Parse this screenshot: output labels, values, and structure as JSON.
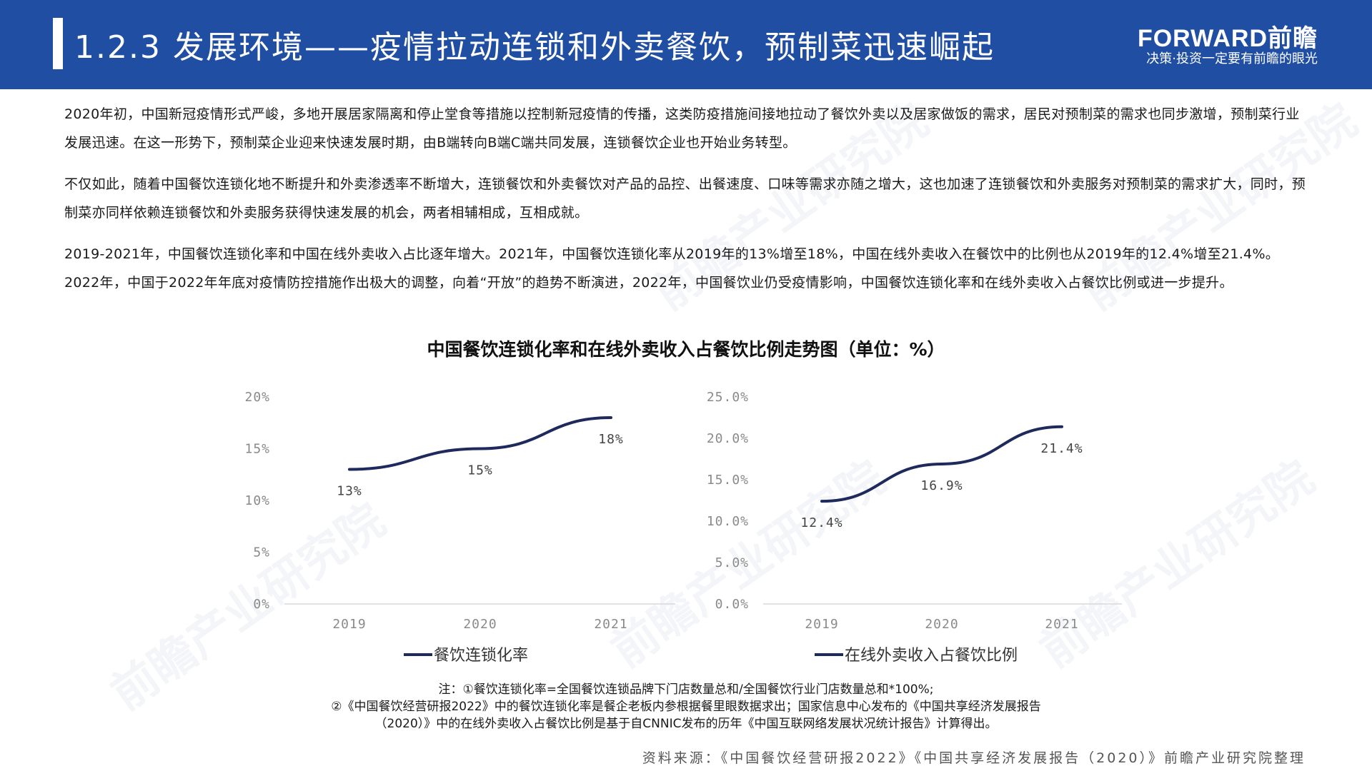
{
  "header": {
    "title": "1.2.3 发展环境——疫情拉动连锁和外卖餐饮，预制菜迅速崛起",
    "logo_text": "FORWARD前瞻",
    "logo_slogan": "决策·投资一定要有前瞻的眼光"
  },
  "paragraphs": [
    "2020年初，中国新冠疫情形式严峻，多地开展居家隔离和停止堂食等措施以控制新冠疫情的传播，这类防疫措施间接地拉动了餐饮外卖以及居家做饭的需求，居民对预制菜的需求也同步激增，预制菜行业发展迅速。在这一形势下，预制菜企业迎来快速发展时期，由B端转向B端C端共同发展，连锁餐饮企业也开始业务转型。",
    "不仅如此，随着中国餐饮连锁化地不断提升和外卖渗透率不断增大，连锁餐饮和外卖餐饮对产品的品控、出餐速度、口味等需求亦随之增大，这也加速了连锁餐饮和外卖服务对预制菜的需求扩大，同时，预制菜亦同样依赖连锁餐饮和外卖服务获得快速发展的机会，两者相辅相成，互相成就。",
    "2019-2021年，中国餐饮连锁化率和中国在线外卖收入占比逐年增大。2021年，中国餐饮连锁化率从2019年的13%增至18%，中国在线外卖收入在餐饮中的比例也从2019年的12.4%增至21.4%。2022年，中国于2022年年底对疫情防控措施作出极大的调整，向着“开放”的趋势不断演进，2022年，中国餐饮业仍受疫情影响，中国餐饮连锁化率和在线外卖收入占餐饮比例或进一步提升。"
  ],
  "chart_title": "中国餐饮连锁化率和在线外卖收入占餐饮比例走势图（单位：%）",
  "chart_data": [
    {
      "type": "line",
      "x": [
        "2019",
        "2020",
        "2021"
      ],
      "series": [
        {
          "name": "餐饮连锁化率",
          "values": [
            13,
            15,
            18
          ],
          "labels": [
            "13%",
            "15%",
            "18%"
          ]
        }
      ],
      "yticks": [
        "0%",
        "5%",
        "10%",
        "15%",
        "20%"
      ],
      "ylim": [
        0,
        20
      ],
      "grid": false,
      "legend": "bottom",
      "color": "#1f2a5c"
    },
    {
      "type": "line",
      "x": [
        "2019",
        "2020",
        "2021"
      ],
      "series": [
        {
          "name": "在线外卖收入占餐饮比例",
          "values": [
            12.4,
            16.9,
            21.4
          ],
          "labels": [
            "12.4%",
            "16.9%",
            "21.4%"
          ]
        }
      ],
      "yticks": [
        "0.0%",
        "5.0%",
        "10.0%",
        "15.0%",
        "20.0%",
        "25.0%"
      ],
      "ylim": [
        0,
        25
      ],
      "grid": false,
      "legend": "bottom",
      "color": "#1f2a5c"
    }
  ],
  "notes": [
    "注：①餐饮连锁化率=全国餐饮连锁品牌下门店数量总和/全国餐饮行业门店数量总和*100%;",
    "②《中国餐饮经营研报2022》中的餐饮连锁化率是餐企老板内参根据餐里眼数据求出；国家信息中心发布的《中国共享经济发展报告",
    "（2020）》中的在线外卖收入占餐饮比例是基于自CNNIC发布的历年《中国互联网络发展状况统计报告》计算得出。"
  ],
  "source": "资料来源：《中国餐饮经营研报2022》《中国共享经济发展报告（2020）》前瞻产业研究院整理",
  "watermark": "前瞻产业研究院"
}
